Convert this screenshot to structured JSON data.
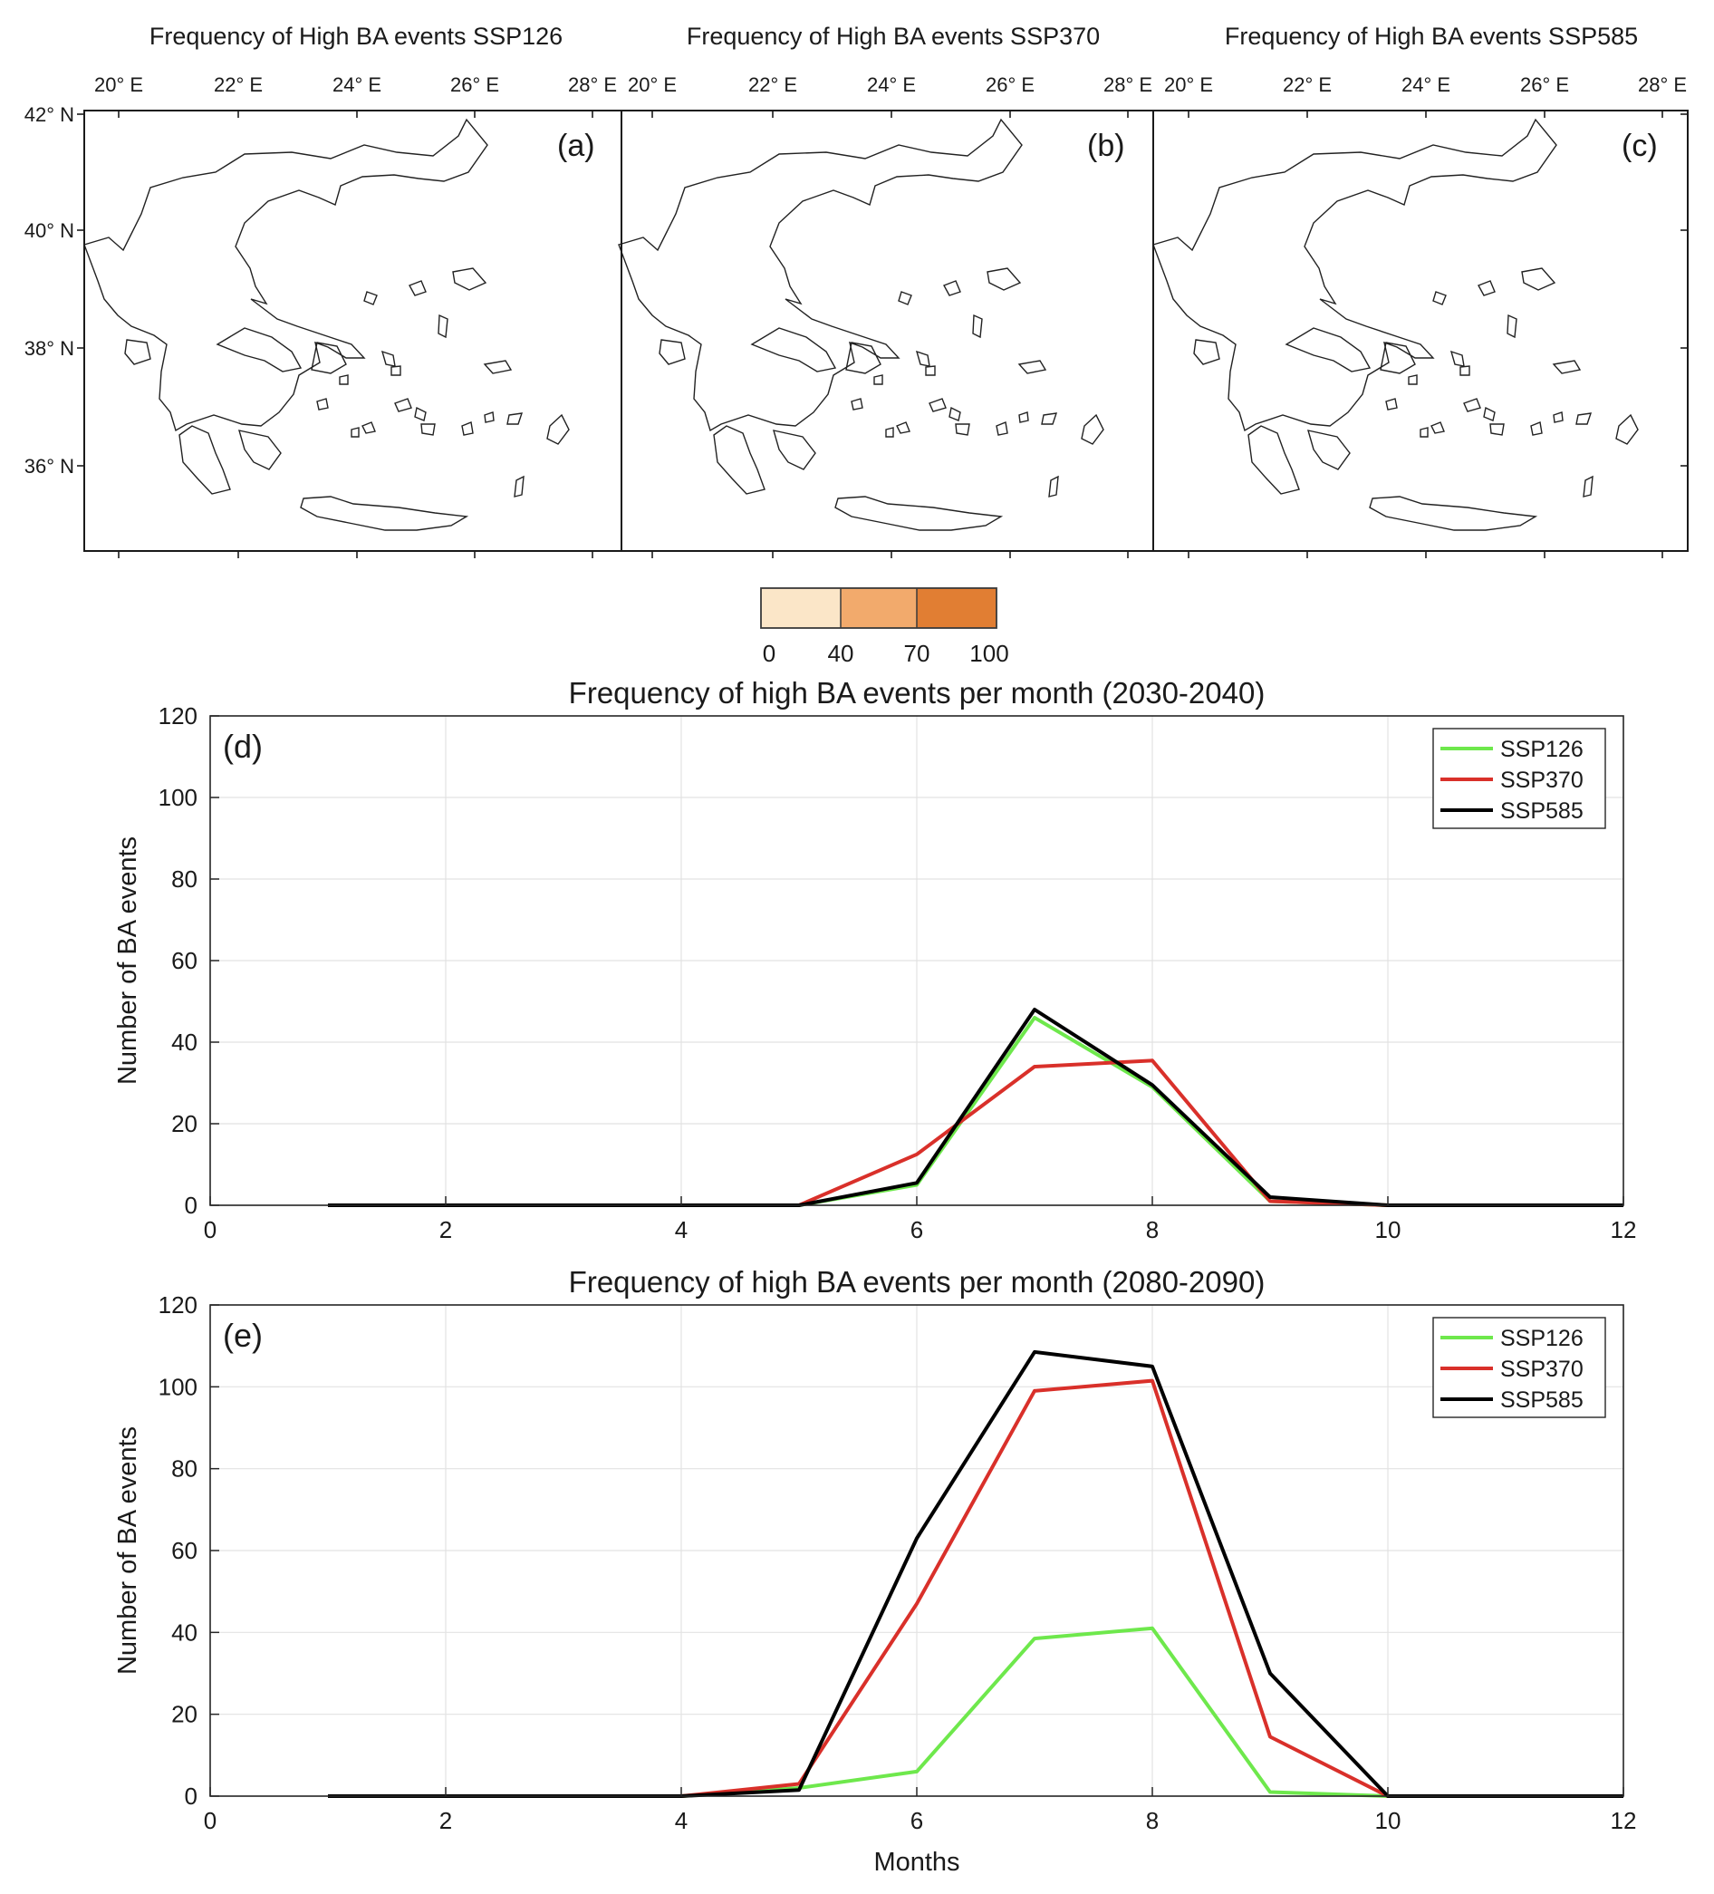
{
  "maps": {
    "panels": [
      {
        "title": "Frequency of High BA events SSP126",
        "letter": "(a)"
      },
      {
        "title": "Frequency of High BA events SSP370",
        "letter": "(b)"
      },
      {
        "title": "Frequency of High BA events SSP585",
        "letter": "(c)"
      }
    ],
    "lon_ticks": [
      "20° E",
      "22° E",
      "24° E",
      "26° E",
      "28° E"
    ],
    "lat_ticks": [
      "42° N",
      "40° N",
      "38° N",
      "36° N"
    ],
    "colorbar": {
      "ticks": [
        "0",
        "40",
        "70",
        "100"
      ],
      "colors": [
        "#fbe6c8",
        "#f2aa6c",
        "#e17e33"
      ],
      "border_color": "#3a3a3a"
    }
  },
  "colors": {
    "ssp126": "#6ee84c",
    "ssp370": "#d9302a",
    "ssp585": "#000000",
    "grid": "#e2e2e2"
  },
  "chart_data": [
    {
      "type": "line",
      "letter": "(d)",
      "title": "Frequency of high BA events per month (2030-2040)",
      "xlabel": "",
      "ylabel": "Number of BA events",
      "xlim": [
        0,
        12
      ],
      "ylim": [
        0,
        120
      ],
      "xticks": [
        0,
        2,
        4,
        6,
        8,
        10,
        12
      ],
      "yticks": [
        0,
        20,
        40,
        60,
        80,
        100,
        120
      ],
      "grid": true,
      "legend_position": "top-right",
      "x": [
        1,
        2,
        3,
        4,
        5,
        6,
        7,
        8,
        9,
        10,
        11,
        12
      ],
      "series": [
        {
          "name": "SSP126",
          "values": [
            0,
            0,
            0,
            0,
            0,
            5,
            46,
            29,
            1,
            0,
            0,
            0
          ]
        },
        {
          "name": "SSP370",
          "values": [
            0,
            0,
            0,
            0,
            0,
            12.5,
            34,
            35.5,
            1,
            0,
            0,
            0
          ]
        },
        {
          "name": "SSP585",
          "values": [
            0,
            0,
            0,
            0,
            0,
            5.5,
            48,
            29.5,
            2,
            0,
            0,
            0
          ]
        }
      ]
    },
    {
      "type": "line",
      "letter": "(e)",
      "title": "Frequency of high BA events per month (2080-2090)",
      "xlabel": "Months",
      "ylabel": "Number of BA events",
      "xlim": [
        0,
        12
      ],
      "ylim": [
        0,
        120
      ],
      "xticks": [
        0,
        2,
        4,
        6,
        8,
        10,
        12
      ],
      "yticks": [
        0,
        20,
        40,
        60,
        80,
        100,
        120
      ],
      "grid": true,
      "legend_position": "top-right",
      "x": [
        1,
        2,
        3,
        4,
        5,
        6,
        7,
        8,
        9,
        10,
        11,
        12
      ],
      "series": [
        {
          "name": "SSP126",
          "values": [
            0,
            0,
            0,
            0,
            2,
            6,
            38.5,
            41,
            1,
            0,
            0,
            0
          ]
        },
        {
          "name": "SSP370",
          "values": [
            0,
            0,
            0,
            0,
            3,
            47,
            99,
            101.5,
            14.5,
            0,
            0,
            0
          ]
        },
        {
          "name": "SSP585",
          "values": [
            0,
            0,
            0,
            0,
            1.5,
            63,
            108.5,
            105,
            30,
            0,
            0,
            0
          ]
        }
      ]
    }
  ]
}
